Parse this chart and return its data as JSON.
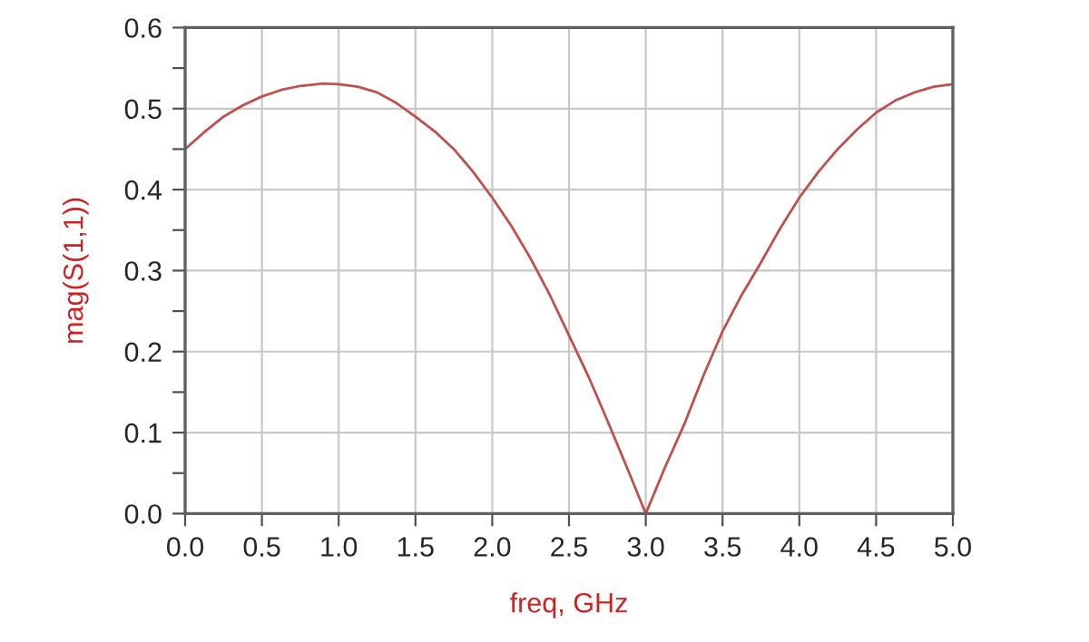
{
  "chart_data": {
    "type": "line",
    "xlabel": "freq, GHz",
    "ylabel": "mag(S(1,1))",
    "x": [
      0,
      0.125,
      0.25,
      0.375,
      0.5,
      0.625,
      0.75,
      0.9,
      1.0,
      1.125,
      1.25,
      1.375,
      1.5,
      1.625,
      1.75,
      1.875,
      2.0,
      2.125,
      2.25,
      2.375,
      2.5,
      2.625,
      2.75,
      2.875,
      3.0,
      3.125,
      3.25,
      3.375,
      3.5,
      3.625,
      3.75,
      3.875,
      4.0,
      4.125,
      4.25,
      4.375,
      4.5,
      4.625,
      4.75,
      4.875,
      5.0
    ],
    "series": [
      {
        "color": "#c0504d",
        "values": [
          0.45,
          0.471,
          0.49,
          0.504,
          0.515,
          0.523,
          0.528,
          0.531,
          0.53,
          0.527,
          0.52,
          0.507,
          0.49,
          0.472,
          0.45,
          0.422,
          0.39,
          0.355,
          0.315,
          0.27,
          0.22,
          0.17,
          0.115,
          0.058,
          0.0,
          0.057,
          0.11,
          0.17,
          0.225,
          0.27,
          0.31,
          0.352,
          0.39,
          0.422,
          0.45,
          0.474,
          0.495,
          0.51,
          0.52,
          0.527,
          0.53
        ]
      }
    ],
    "xlim": [
      0,
      5
    ],
    "xticks": [
      {
        "value": 0,
        "label": "0.0"
      },
      0.5,
      {
        "value": 1,
        "label": "1.0"
      },
      1.5,
      {
        "value": 2,
        "label": "2.0"
      },
      2.5,
      {
        "value": 3,
        "label": "3.0"
      },
      3.5,
      {
        "value": 4,
        "label": "4.0"
      },
      4.5,
      {
        "value": 5,
        "label": "5.0"
      }
    ],
    "ylim": [
      0,
      0.6
    ],
    "yticks": [
      {
        "value": 0,
        "label": "0.0"
      },
      {
        "value": 0.05,
        "label": null
      },
      0.1,
      {
        "value": 0.15,
        "label": null
      },
      0.2,
      {
        "value": 0.25,
        "label": null
      },
      0.3,
      {
        "value": 0.35,
        "label": null
      },
      0.4,
      {
        "value": 0.45,
        "label": null
      },
      0.5,
      {
        "value": 0.55,
        "label": null
      },
      0.6
    ],
    "grid": true,
    "line_style": "solid",
    "marker": "none"
  }
}
